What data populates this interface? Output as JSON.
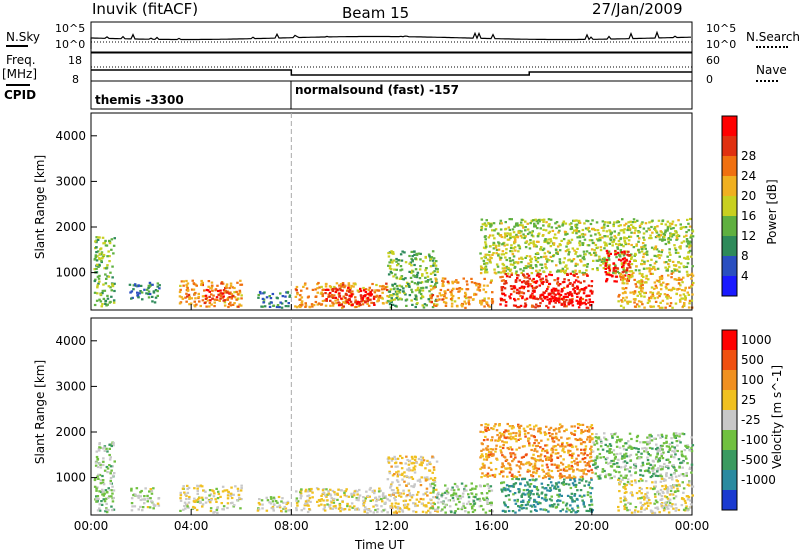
{
  "header": {
    "station": "Inuvik (fitACF)",
    "beam": "Beam 15",
    "date": "27/Jan/2009"
  },
  "left_labels": {
    "nsky": "N.Sky",
    "freq": "Freq.",
    "freq_unit": "[MHz]",
    "cpid": "CPID"
  },
  "right_labels": {
    "nsearch": "N.Search",
    "nave": "Nave"
  },
  "noise_axis": {
    "left_top": "10^5",
    "left_bottom": "10^0",
    "right_top": "10^5",
    "right_bottom": "10^0"
  },
  "freq_axis": {
    "left_top": "18",
    "left_bottom": "8",
    "right_top": "60",
    "right_bottom": "0"
  },
  "cpid": [
    {
      "label": "themis -3300",
      "start_hour": 0
    },
    {
      "label": "normalsound (fast) -157",
      "start_hour": 8
    }
  ],
  "x_axis": {
    "label": "Time UT",
    "ticks": [
      "00:00",
      "04:00",
      "08:00",
      "12:00",
      "16:00",
      "20:00",
      "00:00"
    ]
  },
  "y_axis": {
    "label": "Slant Range [km]",
    "ticks": [
      "1000",
      "2000",
      "3000",
      "4000"
    ]
  },
  "power_scale": {
    "label": "Power [dB]",
    "ticks": [
      "4",
      "8",
      "12",
      "16",
      "20",
      "24",
      "28"
    ],
    "colors": [
      "#1a1aff",
      "#2a4fc0",
      "#2e8a5a",
      "#5fb040",
      "#c8d020",
      "#f0b020",
      "#f07010",
      "#e03010",
      "#ff0000"
    ]
  },
  "velocity_scale": {
    "label": "Velocity [m s^-1]",
    "ticks": [
      "1000",
      "500",
      "100",
      "25",
      "-25",
      "-100",
      "-500",
      "-1000"
    ],
    "colors": [
      "#1a3ad0",
      "#2a8aa0",
      "#3a9a60",
      "#70c040",
      "#c8c8c8",
      "#f0c020",
      "#f09020",
      "#f05010",
      "#ff0000"
    ]
  },
  "chart_data": [
    {
      "type": "heatmap",
      "title": "Power",
      "xlabel": "Time UT",
      "ylabel": "Slant Range [km]",
      "xlim": [
        0,
        24
      ],
      "ylim": [
        180,
        4500
      ],
      "colorbar": "Power [dB]",
      "clim": [
        0,
        30
      ],
      "blobs": [
        {
          "t0": 0.1,
          "t1": 0.9,
          "r0": 250,
          "r1": 1800,
          "v": 12
        },
        {
          "t0": 1.5,
          "t1": 2.7,
          "r0": 350,
          "r1": 800,
          "v": 8
        },
        {
          "t0": 3.5,
          "t1": 6.0,
          "r0": 250,
          "r1": 850,
          "v": 20
        },
        {
          "t0": 4.5,
          "t1": 5.8,
          "r0": 400,
          "r1": 650,
          "v": 26
        },
        {
          "t0": 6.6,
          "t1": 7.9,
          "r0": 250,
          "r1": 600,
          "v": 8
        },
        {
          "t0": 8.1,
          "t1": 11.8,
          "r0": 250,
          "r1": 800,
          "v": 20
        },
        {
          "t0": 9.3,
          "t1": 11.3,
          "r0": 300,
          "r1": 700,
          "v": 28
        },
        {
          "t0": 11.8,
          "t1": 13.8,
          "r0": 250,
          "r1": 1500,
          "v": 12
        },
        {
          "t0": 13.5,
          "t1": 16.0,
          "r0": 250,
          "r1": 900,
          "v": 20
        },
        {
          "t0": 15.5,
          "t1": 24.0,
          "r0": 1000,
          "r1": 2200,
          "v": 14
        },
        {
          "t0": 16.3,
          "t1": 20.0,
          "r0": 250,
          "r1": 1000,
          "v": 26
        },
        {
          "t0": 18.0,
          "t1": 20.0,
          "r0": 300,
          "r1": 700,
          "v": 30
        },
        {
          "t0": 20.5,
          "t1": 21.5,
          "r0": 800,
          "r1": 1500,
          "v": 28
        },
        {
          "t0": 21.0,
          "t1": 24.0,
          "r0": 250,
          "r1": 1000,
          "v": 18
        }
      ]
    },
    {
      "type": "heatmap",
      "title": "Velocity",
      "xlabel": "Time UT",
      "ylabel": "Slant Range [km]",
      "xlim": [
        0,
        24
      ],
      "ylim": [
        180,
        4500
      ],
      "colorbar": "Velocity [m s^-1]",
      "clim": [
        -1000,
        1000
      ],
      "blobs": [
        {
          "t0": 0.1,
          "t1": 0.9,
          "r0": 250,
          "r1": 1800,
          "v": -200
        },
        {
          "t0": 1.5,
          "t1": 2.7,
          "r0": 300,
          "r1": 800,
          "v": -80
        },
        {
          "t0": 3.5,
          "t1": 6.0,
          "r0": 250,
          "r1": 850,
          "v": 60
        },
        {
          "t0": 6.6,
          "t1": 7.9,
          "r0": 250,
          "r1": 600,
          "v": -50
        },
        {
          "t0": 8.1,
          "t1": 11.8,
          "r0": 250,
          "r1": 800,
          "v": 80
        },
        {
          "t0": 11.8,
          "t1": 13.8,
          "r0": 250,
          "r1": 1500,
          "v": 150
        },
        {
          "t0": 13.5,
          "t1": 16.0,
          "r0": 250,
          "r1": 900,
          "v": -150
        },
        {
          "t0": 15.5,
          "t1": 20.0,
          "r0": 1000,
          "r1": 2200,
          "v": 400
        },
        {
          "t0": 16.3,
          "t1": 20.0,
          "r0": 250,
          "r1": 1000,
          "v": -500
        },
        {
          "t0": 20.0,
          "t1": 24.0,
          "r0": 1000,
          "r1": 2000,
          "v": -200
        },
        {
          "t0": 21.0,
          "t1": 24.0,
          "r0": 250,
          "r1": 1000,
          "v": 50
        }
      ]
    }
  ]
}
